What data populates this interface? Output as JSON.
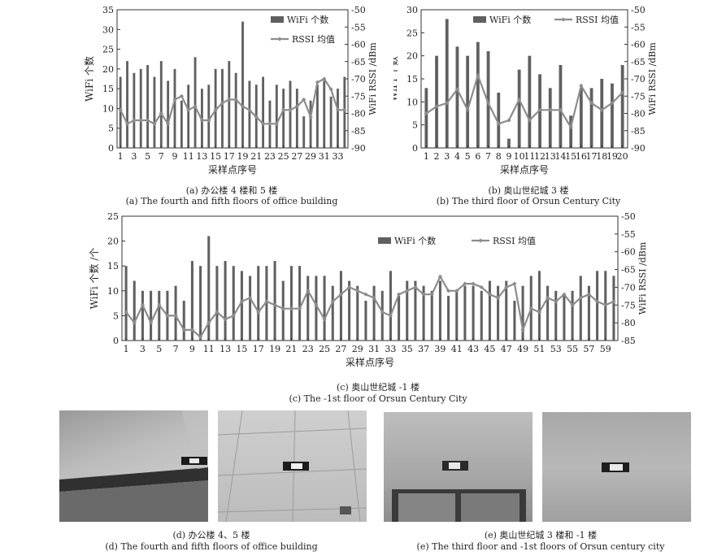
{
  "chart_data": [
    {
      "id": "a",
      "type": "bar+line",
      "xlabel": "采样点序号",
      "ylabel_left": "WiFi 个数",
      "ylabel_right": "WiFi RSSI /dBm",
      "ylim_left": [
        0,
        35
      ],
      "ylim_right": [
        -90,
        -50
      ],
      "yticks_left": [
        0,
        5,
        10,
        15,
        20,
        25,
        30,
        35
      ],
      "yticks_right": [
        -90,
        -85,
        -80,
        -75,
        -70,
        -65,
        -60,
        -55,
        -50
      ],
      "xtick_labels": [
        "1",
        "3",
        "5",
        "7",
        "9",
        "11",
        "13",
        "15",
        "17",
        "19",
        "21",
        "23",
        "25",
        "27",
        "29",
        "31",
        "33"
      ],
      "legend": [
        "WiFi 个数",
        "RSSI 均值"
      ],
      "legend_position": "top-right",
      "x": [
        1,
        2,
        3,
        4,
        5,
        6,
        7,
        8,
        9,
        10,
        11,
        12,
        13,
        14,
        15,
        16,
        17,
        18,
        19,
        20,
        21,
        22,
        23,
        24,
        25,
        26,
        27,
        28,
        29,
        30,
        31,
        32,
        33,
        34
      ],
      "bar_values": [
        18,
        22,
        19,
        20,
        21,
        18,
        22,
        17,
        20,
        12,
        16,
        23,
        15,
        16,
        20,
        20,
        22,
        19,
        32,
        17,
        16,
        18,
        12,
        16,
        15,
        17,
        15,
        8,
        12,
        16,
        17,
        13,
        15,
        18
      ],
      "line_values": [
        -79,
        -83,
        -82,
        -82,
        -82,
        -83,
        -80,
        -83,
        -76,
        -75,
        -79,
        -78,
        -82,
        -82,
        -79,
        -77,
        -76,
        -76,
        -78,
        -79,
        -81,
        -83,
        -83,
        -83,
        -79,
        -79,
        -78,
        -76,
        -81,
        -71,
        -70,
        -73,
        -79,
        -79
      ],
      "caption_cn": "(a) 办公楼 4 楼和 5 楼",
      "caption_en": "(a) The fourth and fifth floors of office building"
    },
    {
      "id": "b",
      "type": "bar+line",
      "xlabel": "采样点序号",
      "ylabel_left": "WiFi 个数",
      "ylabel_right": "WiFi RSSI /dBm",
      "ylim_left": [
        0,
        30
      ],
      "ylim_right": [
        -90,
        -50
      ],
      "yticks_left": [
        0,
        5,
        10,
        15,
        20,
        25,
        30
      ],
      "yticks_right": [
        -90,
        -85,
        -80,
        -75,
        -70,
        -65,
        -60,
        -55,
        -50
      ],
      "xtick_labels": [
        "1",
        "2",
        "3",
        "4",
        "5",
        "6",
        "7",
        "8",
        "9",
        "10",
        "11",
        "12",
        "13",
        "14",
        "15",
        "16",
        "17",
        "18",
        "19",
        "20"
      ],
      "legend": [
        "WiFi 个数",
        "RSSI 均值"
      ],
      "legend_position": "top",
      "x": [
        1,
        2,
        3,
        4,
        5,
        6,
        7,
        8,
        9,
        10,
        11,
        12,
        13,
        14,
        15,
        16,
        17,
        18,
        19,
        20
      ],
      "bar_values": [
        13,
        20,
        28,
        22,
        20,
        23,
        21,
        12,
        2,
        17,
        20,
        16,
        13,
        18,
        7,
        13,
        13,
        15,
        14,
        18
      ],
      "line_values": [
        -80,
        -78,
        -77,
        -73,
        -79,
        -69,
        -77,
        -83,
        -82,
        -76,
        -82,
        -79,
        -79,
        -79,
        -84,
        -72,
        -77,
        -79,
        -77,
        -74
      ],
      "caption_cn": "(b) 奥山世纪城 3 楼",
      "caption_en": "(b) The third floor of  Orsun Century City"
    },
    {
      "id": "c",
      "type": "bar+line",
      "xlabel": "采样点序号",
      "ylabel_left": "WiFi 个数 /个",
      "ylabel_right": "WiFi RSSI /dBm",
      "ylim_left": [
        0,
        25
      ],
      "ylim_right": [
        -85,
        -50
      ],
      "yticks_left": [
        0,
        5,
        10,
        15,
        20,
        25
      ],
      "yticks_right": [
        -85,
        -80,
        -75,
        -70,
        -65,
        -60,
        -55,
        -50
      ],
      "xtick_labels": [
        "1",
        "3",
        "5",
        "7",
        "9",
        "11",
        "13",
        "15",
        "17",
        "19",
        "21",
        "23",
        "25",
        "27",
        "29",
        "31",
        "33",
        "35",
        "37",
        "39",
        "41",
        "43",
        "45",
        "47",
        "49",
        "51",
        "53",
        "55",
        "57",
        "59"
      ],
      "legend": [
        "WiFi 个数",
        "RSSI 均值"
      ],
      "legend_position": "top-right",
      "x": [
        1,
        2,
        3,
        4,
        5,
        6,
        7,
        8,
        9,
        10,
        11,
        12,
        13,
        14,
        15,
        16,
        17,
        18,
        19,
        20,
        21,
        22,
        23,
        24,
        25,
        26,
        27,
        28,
        29,
        30,
        31,
        32,
        33,
        34,
        35,
        36,
        37,
        38,
        39,
        40,
        41,
        42,
        43,
        44,
        45,
        46,
        47,
        48,
        49,
        50,
        51,
        52,
        53,
        54,
        55,
        56,
        57,
        58,
        59,
        60
      ],
      "bar_values": [
        15,
        12,
        10,
        10,
        10,
        10,
        11,
        8,
        16,
        15,
        21,
        15,
        16,
        15,
        14,
        13,
        15,
        15,
        16,
        12,
        15,
        15,
        13,
        13,
        13,
        11,
        14,
        12,
        11,
        8,
        11,
        10,
        14,
        9,
        12,
        12,
        11,
        10,
        12,
        9,
        10,
        11,
        11,
        10,
        12,
        11,
        12,
        8,
        11,
        13,
        14,
        11,
        10,
        9,
        10,
        13,
        11,
        14,
        14,
        13
      ],
      "line_values": [
        -77,
        -80,
        -75,
        -80,
        -75,
        -78,
        -78,
        -82,
        -82,
        -84,
        -80,
        -77,
        -79,
        -78,
        -74,
        -73,
        -77,
        -74,
        -75,
        -76,
        -76,
        -76,
        -71,
        -75,
        -79,
        -74,
        -72,
        -70,
        -71,
        -72,
        -73,
        -77,
        -78,
        -72,
        -71,
        -70,
        -72,
        -72,
        -67,
        -71,
        -71,
        -69,
        -69,
        -70,
        -72,
        -73,
        -70,
        -69,
        -82,
        -76,
        -77,
        -73,
        -74,
        -72,
        -75,
        -73,
        -72,
        -74,
        -75,
        -74
      ],
      "caption_cn": "(c) 奥山世纪城  -1 楼",
      "caption_en": "(c) The -1st floor of Orsun Century City"
    }
  ],
  "photos": {
    "caption_d_cn": "(d) 办公楼  4、5 楼",
    "caption_d_en": "(d) The fourth and fifth floors of office building",
    "caption_e_cn": "(e) 奥山世纪城 3 楼和  -1 楼",
    "caption_e_en": "(e) The third floor and -1st floors of Orsun century city"
  },
  "colors": {
    "bar": "#606060",
    "line": "#8c8c8c",
    "axis": "#333333",
    "photo_wall": "#b5b5b5",
    "photo_ceiling": "#c4c4c4"
  }
}
